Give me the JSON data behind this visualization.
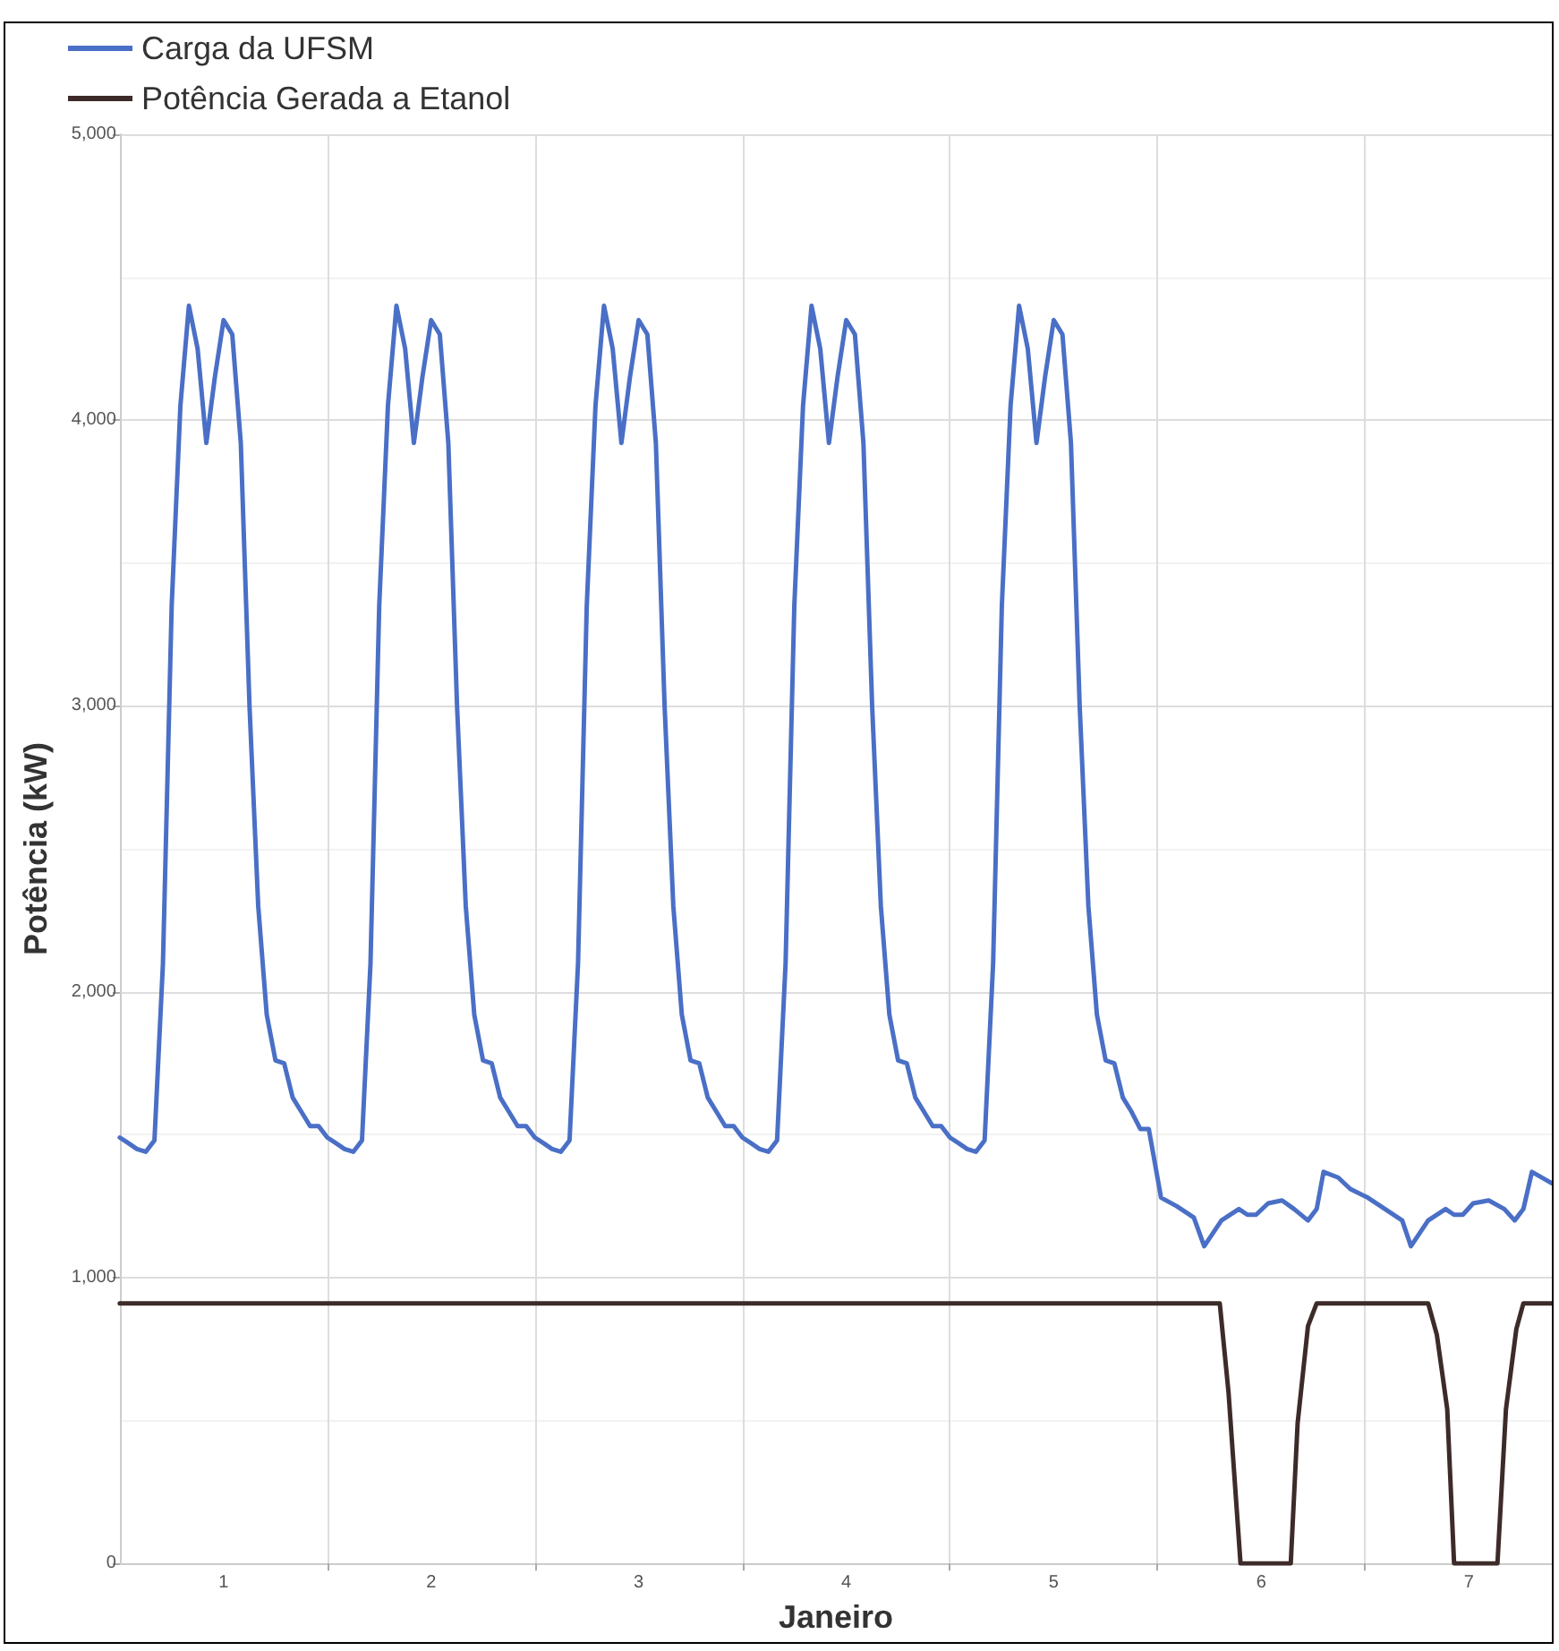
{
  "chart_data": {
    "type": "line",
    "xlabel": "Janeiro",
    "ylabel": "Potência (kW)",
    "xlim": [
      0.5,
      7.4
    ],
    "ylim": [
      0,
      5000
    ],
    "xticks": [
      1,
      {
        "value": 1.5,
        "label": null
      },
      2,
      {
        "value": 2.5,
        "label": null
      },
      3,
      {
        "value": 3.5,
        "label": null
      },
      4,
      {
        "value": 4.5,
        "label": null
      },
      5,
      {
        "value": 5.5,
        "label": null
      },
      6,
      {
        "value": 6.5,
        "label": null
      },
      7
    ],
    "yticks": [
      0,
      {
        "value": 1000,
        "label": "1,000"
      },
      {
        "value": 2000,
        "label": "2,000"
      },
      {
        "value": 3000,
        "label": "3,000"
      },
      {
        "value": 4000,
        "label": "4,000"
      },
      {
        "value": 5000,
        "label": "5,000"
      }
    ],
    "grid": true,
    "legend": "top left",
    "marker": "none",
    "line_style": "solid",
    "series": [
      {
        "name": "Carga da UFSM",
        "color": "#4a6fc6",
        "x": [
          0.5,
          0.542,
          0.583,
          0.625,
          0.667,
          0.708,
          0.75,
          0.792,
          0.833,
          0.875,
          0.917,
          0.958,
          1,
          1.042,
          1.083,
          1.125,
          1.167,
          1.208,
          1.25,
          1.292,
          1.333,
          1.375,
          1.417,
          1.458,
          1.5,
          1.542,
          1.583,
          1.625,
          1.667,
          1.708,
          1.75,
          1.792,
          1.833,
          1.875,
          1.917,
          1.958,
          2,
          2.042,
          2.083,
          2.125,
          2.167,
          2.208,
          2.25,
          2.292,
          2.333,
          2.375,
          2.417,
          2.458,
          2.5,
          2.542,
          2.583,
          2.625,
          2.667,
          2.708,
          2.75,
          2.792,
          2.833,
          2.875,
          2.917,
          2.958,
          3,
          3.042,
          3.083,
          3.125,
          3.167,
          3.208,
          3.25,
          3.292,
          3.333,
          3.375,
          3.417,
          3.458,
          3.5,
          3.542,
          3.583,
          3.625,
          3.667,
          3.708,
          3.75,
          3.792,
          3.833,
          3.875,
          3.917,
          3.958,
          4,
          4.042,
          4.083,
          4.125,
          4.167,
          4.208,
          4.25,
          4.292,
          4.333,
          4.375,
          4.417,
          4.458,
          4.5,
          4.542,
          4.583,
          4.625,
          4.667,
          4.708,
          4.75,
          4.792,
          4.833,
          4.875,
          4.917,
          4.958,
          5,
          5.042,
          5.083,
          5.125,
          5.167,
          5.208,
          5.25,
          5.292,
          5.333,
          5.375,
          5.417,
          5.458,
          5.517,
          5.592,
          5.675,
          5.725,
          5.808,
          5.892,
          5.933,
          5.975,
          6.033,
          6.1,
          6.158,
          6.225,
          6.267,
          6.3,
          6.371,
          6.429,
          6.513,
          6.596,
          6.679,
          6.721,
          6.804,
          6.888,
          6.929,
          6.971,
          7.021,
          7.096,
          7.171,
          7.221,
          7.263,
          7.304,
          7.4
        ],
        "values": [
          1490,
          1470,
          1450,
          1440,
          1480,
          2100,
          3350,
          4050,
          4400,
          4250,
          3920,
          4150,
          4350,
          4300,
          3920,
          3000,
          2300,
          1920,
          1760,
          1750,
          1630,
          1580,
          1530,
          1530,
          1490,
          1470,
          1450,
          1440,
          1480,
          2100,
          3350,
          4050,
          4400,
          4250,
          3920,
          4150,
          4350,
          4300,
          3920,
          3000,
          2300,
          1920,
          1760,
          1750,
          1630,
          1580,
          1530,
          1530,
          1490,
          1470,
          1450,
          1440,
          1480,
          2100,
          3350,
          4050,
          4400,
          4250,
          3920,
          4150,
          4350,
          4300,
          3920,
          3000,
          2300,
          1920,
          1760,
          1750,
          1630,
          1580,
          1530,
          1530,
          1490,
          1470,
          1450,
          1440,
          1480,
          2100,
          3350,
          4050,
          4400,
          4250,
          3920,
          4150,
          4350,
          4300,
          3920,
          3000,
          2300,
          1920,
          1760,
          1750,
          1630,
          1580,
          1530,
          1530,
          1490,
          1470,
          1450,
          1440,
          1480,
          2100,
          3350,
          4050,
          4400,
          4250,
          3920,
          4150,
          4350,
          4300,
          3920,
          3000,
          2300,
          1920,
          1760,
          1750,
          1630,
          1580,
          1520,
          1520,
          1280,
          1250,
          1210,
          1110,
          1200,
          1240,
          1220,
          1220,
          1260,
          1270,
          1240,
          1200,
          1240,
          1370,
          1350,
          1310,
          1280,
          1240,
          1200,
          1110,
          1200,
          1240,
          1220,
          1220,
          1260,
          1270,
          1240,
          1200,
          1240,
          1370,
          1330
        ]
      },
      {
        "name": "Potência Gerada a Etanol",
        "color": "#3d2b29",
        "x": [
          0.5,
          5.8,
          5.842,
          5.9,
          6.142,
          6.175,
          6.225,
          6.267,
          6.804,
          6.846,
          6.896,
          6.929,
          7.138,
          7.179,
          7.229,
          7.263,
          7.4
        ],
        "values": [
          910,
          910,
          600,
          0,
          0,
          490,
          830,
          910,
          910,
          800,
          540,
          0,
          0,
          540,
          820,
          910,
          910
        ]
      }
    ]
  }
}
